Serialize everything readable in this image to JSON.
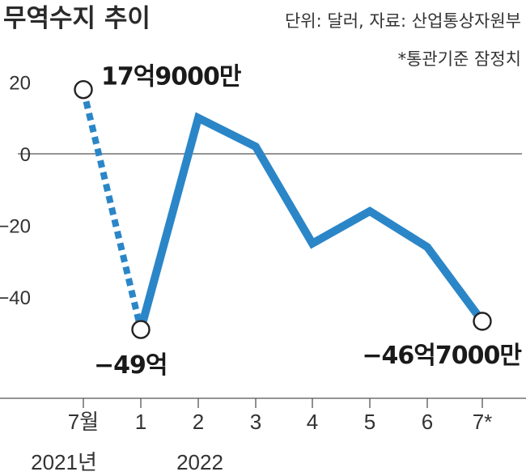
{
  "chart_data": {
    "type": "line",
    "title": "무역수지 추이",
    "unit_note": "단위: 달러, 자료: 산업통상자원부",
    "footnote": "*통관기준 잠정치",
    "categories": [
      "7월",
      "1",
      "2",
      "3",
      "4",
      "5",
      "6",
      "7*"
    ],
    "year_labels": [
      "2021년",
      "",
      "2022",
      "",
      "",
      "",
      "",
      ""
    ],
    "values": [
      17.9,
      -49,
      10,
      2,
      -25,
      -16,
      -26,
      -46.7
    ],
    "ylim": [
      -68,
      20
    ],
    "yticks": [
      "20",
      "0",
      "-20",
      "-40"
    ],
    "ytick_values": [
      20,
      0,
      -20,
      -40
    ],
    "dashed_segment": [
      0,
      1
    ],
    "line_color": "#2b86c8",
    "data_labels": [
      {
        "index": 0,
        "text": "17억9000만"
      },
      {
        "index": 1,
        "text": "−49억"
      },
      {
        "index": 7,
        "text": "−46억7000만"
      }
    ],
    "marked_points": [
      0,
      1,
      7
    ]
  }
}
